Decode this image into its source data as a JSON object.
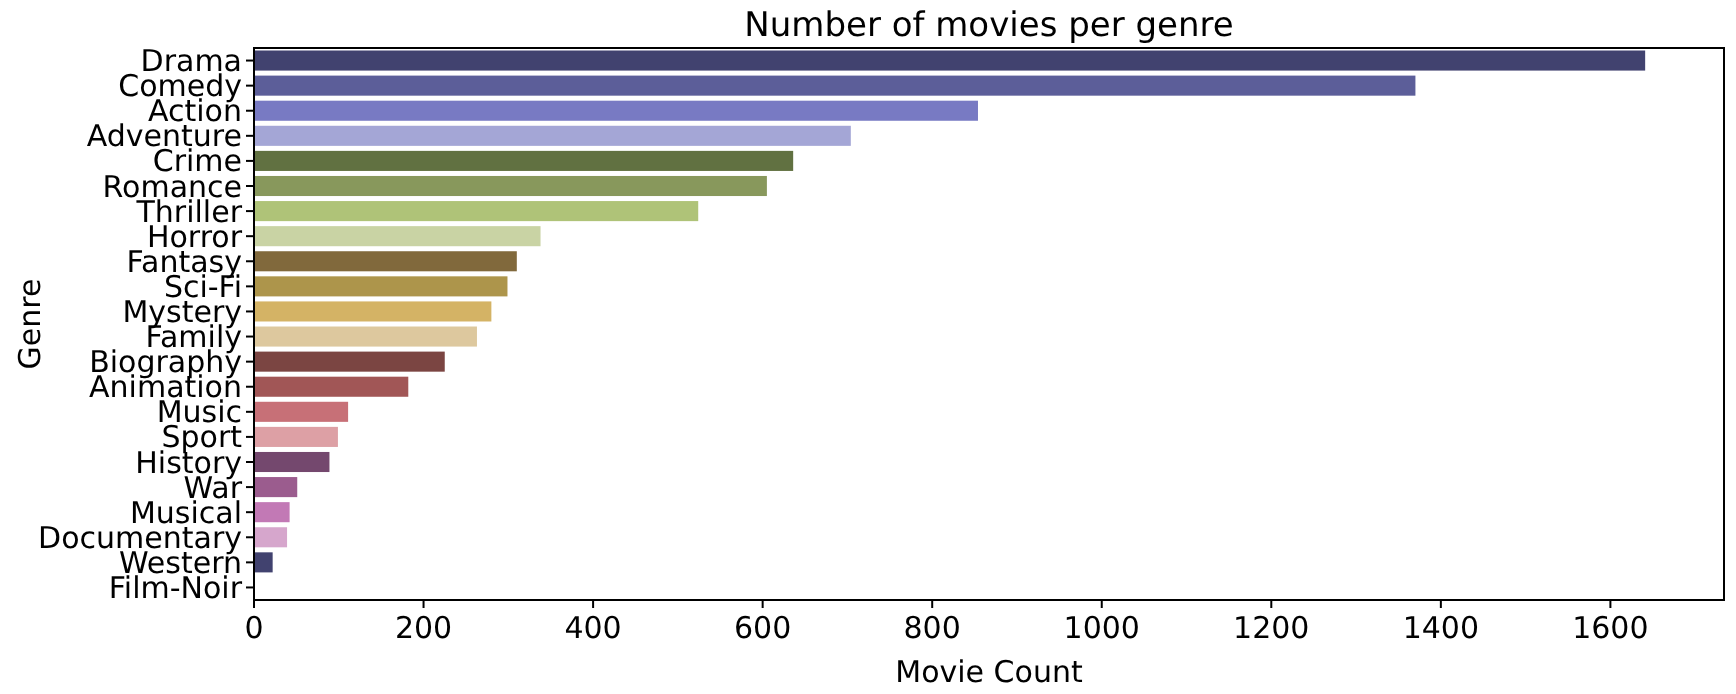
{
  "chart_data": {
    "type": "bar",
    "orientation": "horizontal",
    "title": "Number of movies per genre",
    "xlabel": "Movie Count",
    "ylabel": "Genre",
    "categories": [
      "Drama",
      "Comedy",
      "Action",
      "Adventure",
      "Crime",
      "Romance",
      "Thriller",
      "Horror",
      "Fantasy",
      "Sci-Fi",
      "Mystery",
      "Family",
      "Biography",
      "Animation",
      "Music",
      "Sport",
      "History",
      "War",
      "Musical",
      "Documentary",
      "Western",
      "Film-Noir"
    ],
    "values": [
      1641,
      1370,
      854,
      704,
      636,
      605,
      524,
      338,
      310,
      299,
      280,
      263,
      225,
      182,
      111,
      99,
      89,
      51,
      42,
      39,
      22,
      1
    ],
    "colors": [
      "#41426f",
      "#5c5e99",
      "#787ac3",
      "#a4a6d6",
      "#617141",
      "#88985c",
      "#afc378",
      "#c9d3a4",
      "#81693c",
      "#ad954b",
      "#d4b365",
      "#ddc89e",
      "#7b4542",
      "#a15656",
      "#c77077",
      "#dda0a5",
      "#74486e",
      "#9b5c8e",
      "#c279b5",
      "#d6a6cc",
      "#41426f",
      "#5c5e99"
    ],
    "xlim": [
      0,
      1734
    ],
    "xticks": [
      0,
      200,
      400,
      600,
      800,
      1000,
      1200,
      1400,
      1600
    ],
    "grid": false
  }
}
